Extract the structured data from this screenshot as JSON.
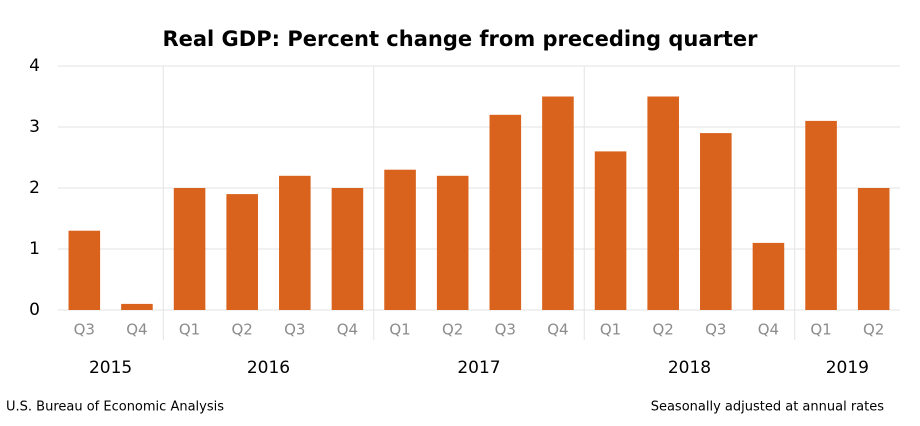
{
  "chart_data": {
    "type": "bar",
    "title": "Real GDP:  Percent change from preceding quarter",
    "groups": [
      {
        "label": "2015",
        "categories": [
          "Q3",
          "Q4"
        ],
        "values": [
          1.3,
          0.1
        ]
      },
      {
        "label": "2016",
        "categories": [
          "Q1",
          "Q2",
          "Q3",
          "Q4"
        ],
        "values": [
          2.0,
          1.9,
          2.2,
          2.0
        ]
      },
      {
        "label": "2017",
        "categories": [
          "Q1",
          "Q2",
          "Q3",
          "Q4"
        ],
        "values": [
          2.3,
          2.2,
          3.2,
          3.5
        ]
      },
      {
        "label": "2018",
        "categories": [
          "Q1",
          "Q2",
          "Q3",
          "Q4"
        ],
        "values": [
          2.6,
          3.5,
          2.9,
          1.1
        ]
      },
      {
        "label": "2019",
        "categories": [
          "Q1",
          "Q2"
        ],
        "values": [
          3.1,
          2.0
        ]
      }
    ],
    "color": "#d9621c",
    "ylim": [
      0,
      4
    ],
    "yticks": [
      0,
      1,
      2,
      3,
      4
    ],
    "grid": true,
    "source": "U.S. Bureau of Economic Analysis",
    "note": "Seasonally adjusted at annual rates"
  }
}
